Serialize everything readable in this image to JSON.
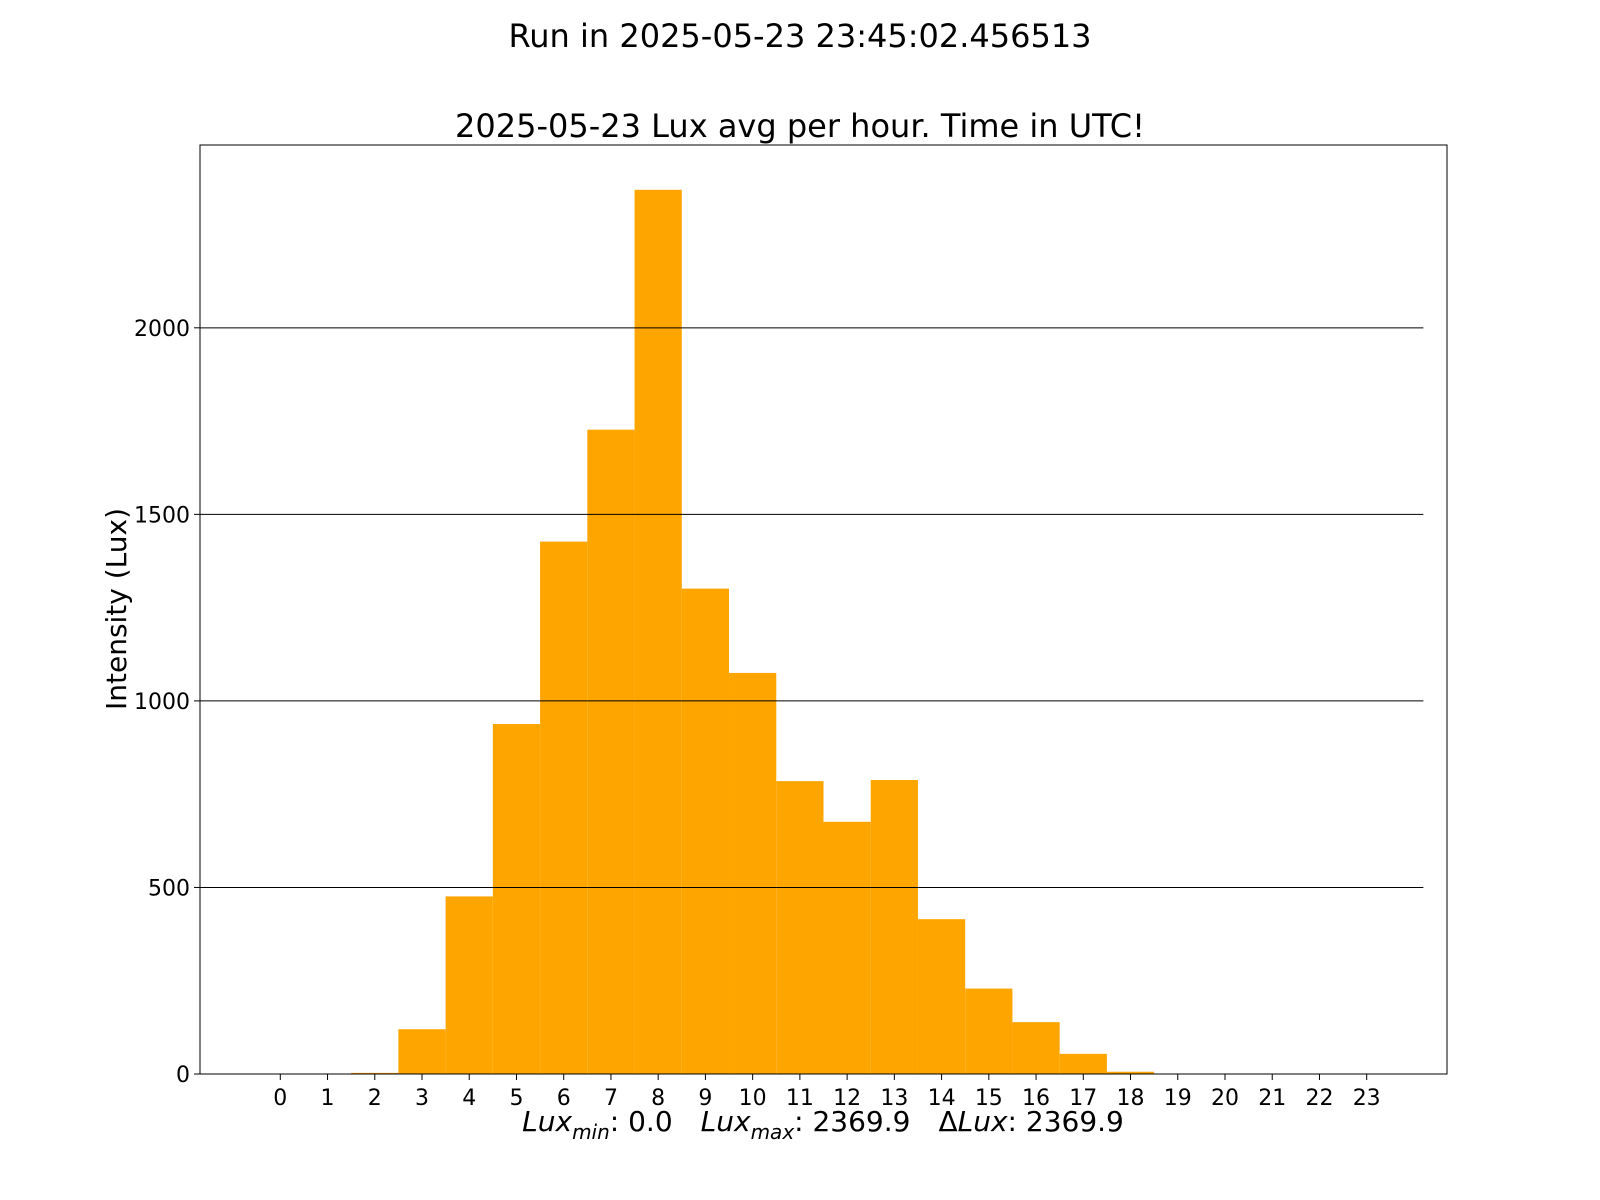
{
  "suptitle": "Run in 2025-05-23 23:45:02.456513",
  "chart_data": {
    "type": "bar",
    "title": "2025-05-23 Lux avg per hour. Time in UTC!",
    "ylabel": "Intensity (Lux)",
    "xlabel": {
      "min_label": "Lux",
      "min_sub": "min",
      "min_value": ": 0.0",
      "max_label": "Lux",
      "max_sub": "max",
      "max_value": ": 2369.9",
      "delta_symbol": "Δ",
      "delta_label": "Lux",
      "delta_value": ": 2369.9"
    },
    "categories": [
      "0",
      "1",
      "2",
      "3",
      "4",
      "5",
      "6",
      "7",
      "8",
      "9",
      "10",
      "11",
      "12",
      "13",
      "14",
      "15",
      "16",
      "17",
      "18",
      "19",
      "20",
      "21",
      "22",
      "23"
    ],
    "values": [
      0,
      0,
      3,
      120,
      476,
      938,
      1427,
      1727,
      2369.9,
      1301,
      1075,
      785,
      676,
      788,
      415,
      229,
      139,
      54,
      6,
      0,
      0,
      0,
      0,
      0
    ],
    "yticks": [
      0,
      500,
      1000,
      1500,
      2000
    ],
    "ylim": [
      0,
      2490
    ],
    "xlim": [
      -1.7,
      24.7
    ],
    "grid": "horizontal",
    "bar_color": "#FFA500"
  }
}
